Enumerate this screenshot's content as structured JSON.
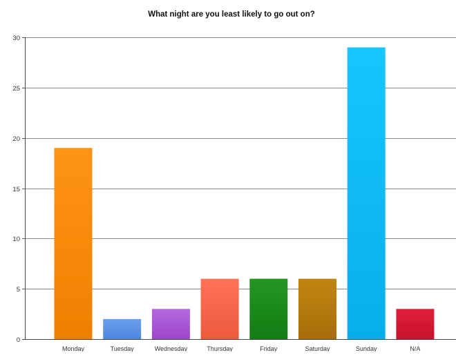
{
  "chart_data": {
    "type": "bar",
    "title": "What night are you least likely to go out on?",
    "xlabel": "",
    "ylabel": "",
    "categories": [
      "Monday",
      "Tuesday",
      "Wednesday",
      "Thursday",
      "Friday",
      "Saturday",
      "Sunday",
      "N/A"
    ],
    "values": [
      19,
      2,
      3,
      6,
      6,
      6,
      29,
      3
    ],
    "colors": [
      "#f07f00",
      "#4f86dc",
      "#9b48c9",
      "#ec5a3e",
      "#137d13",
      "#a86d08",
      "#08aeeb",
      "#c9112d"
    ],
    "highlight_colors": [
      "#ff9414",
      "#6b9ff0",
      "#b667e0",
      "#ff7257",
      "#249524",
      "#c08612",
      "#16c6ff",
      "#e01f3a"
    ],
    "ylim": [
      0,
      30
    ],
    "yticks": [
      0,
      5,
      10,
      15,
      20,
      25,
      30
    ],
    "grid": true,
    "legend": "none"
  }
}
